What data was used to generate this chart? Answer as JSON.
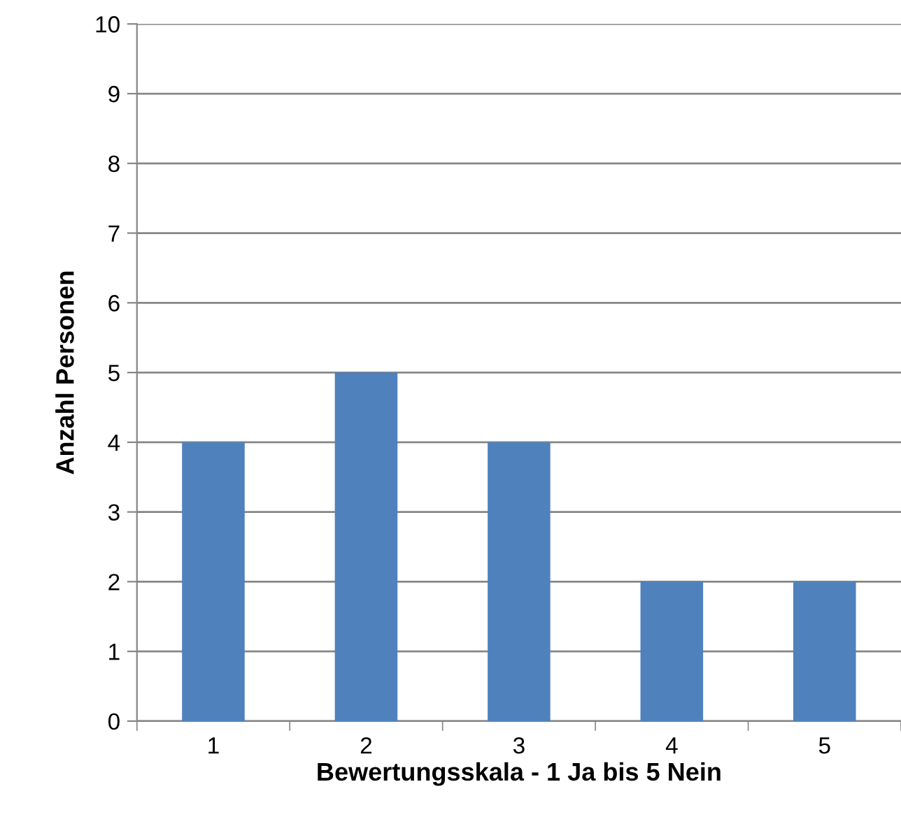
{
  "chart_data": {
    "type": "bar",
    "xlabel": "Bewertungsskala - 1 Ja bis 5 Nein",
    "ylabel": "Anzahl Personen",
    "categories": [
      "1",
      "2",
      "3",
      "4",
      "5"
    ],
    "values": [
      4,
      5,
      4,
      2,
      2
    ],
    "color": "#4f81bd",
    "ylim": [
      0,
      10
    ],
    "yticks": [
      0,
      1,
      2,
      3,
      4,
      5,
      6,
      7,
      8,
      9,
      10
    ],
    "grid": "y",
    "legend": false
  }
}
